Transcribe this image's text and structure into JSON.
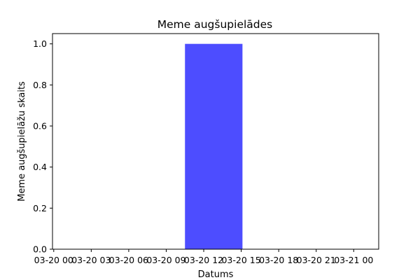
{
  "chart_data": {
    "type": "bar",
    "title": "Meme augšupielādes",
    "xlabel": "Datums",
    "ylabel": "Meme augšupielāžu skaits",
    "x_ticks": [
      {
        "value": 0,
        "label": "03-20 00"
      },
      {
        "value": 3,
        "label": "03-20 03"
      },
      {
        "value": 6,
        "label": "03-20 06"
      },
      {
        "value": 9,
        "label": "03-20 09"
      },
      {
        "value": 12,
        "label": "03-20 12"
      },
      {
        "value": 15,
        "label": "03-20 15"
      },
      {
        "value": 18,
        "label": "03-20 18"
      },
      {
        "value": 21,
        "label": "03-20 21"
      },
      {
        "value": 24,
        "label": "03-21 00"
      }
    ],
    "xlim": [
      -0.1,
      26
    ],
    "ylim": [
      0,
      1.05
    ],
    "y_ticks": [
      0.0,
      0.2,
      0.4,
      0.6,
      0.8,
      1.0
    ],
    "bars": [
      {
        "x_start": 10.5,
        "x_end": 15.1,
        "value": 1
      }
    ],
    "bar_color": "#4d4dff",
    "grid": false
  }
}
